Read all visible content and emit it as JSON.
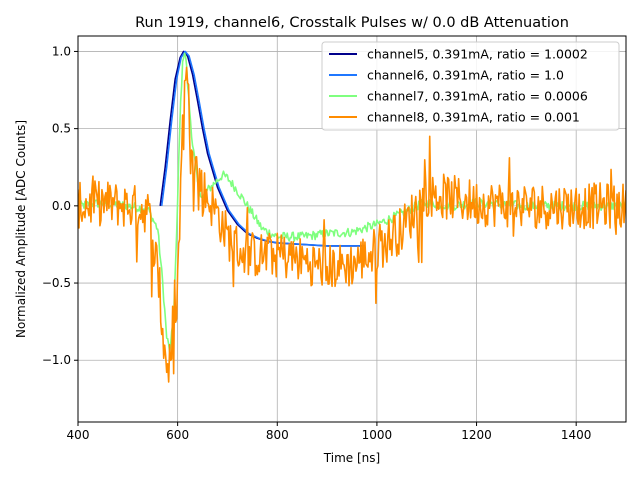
{
  "chart_data": {
    "type": "line",
    "title": "Run 1919, channel6, Crosstalk Pulses w/ 0.0 dB Attenuation",
    "xlabel": "Time [ns]",
    "ylabel": "Normalized Amplitude [ADC Counts]",
    "xlim": [
      400,
      1500
    ],
    "ylim": [
      -1.4,
      1.1
    ],
    "xticks": [
      400,
      600,
      800,
      1000,
      1200,
      1400
    ],
    "yticks": [
      -1.0,
      -0.5,
      0.0,
      0.5,
      1.0
    ],
    "xtick_labels": [
      "400",
      "600",
      "800",
      "1000",
      "1200",
      "1400"
    ],
    "ytick_labels": [
      "−1.0",
      "−0.5",
      "0.0",
      "0.5",
      "1.0"
    ],
    "grid": true,
    "legend_position": "upper-right",
    "series": [
      {
        "name": "channel5, 0.391mA, ratio = 1.0002",
        "color": "#00008b",
        "x": [
          565,
          575,
          585,
          595,
          605,
          612,
          620,
          630,
          640,
          650,
          660,
          680,
          700,
          720,
          740,
          760,
          780,
          800,
          850,
          900,
          950,
          975
        ],
        "y": [
          0.0,
          0.25,
          0.55,
          0.82,
          0.96,
          1.0,
          0.97,
          0.85,
          0.68,
          0.5,
          0.34,
          0.12,
          -0.03,
          -0.12,
          -0.18,
          -0.21,
          -0.23,
          -0.24,
          -0.25,
          -0.26,
          -0.26,
          -0.26
        ]
      },
      {
        "name": "channel6, 0.391mA, ratio = 1.0",
        "color": "#1f77ff",
        "x": [
          568,
          578,
          588,
          598,
          607,
          615,
          623,
          633,
          643,
          653,
          663,
          683,
          703,
          723,
          743,
          763,
          783,
          803,
          853,
          903,
          953,
          975
        ],
        "y": [
          0.0,
          0.25,
          0.55,
          0.82,
          0.96,
          1.0,
          0.97,
          0.85,
          0.68,
          0.5,
          0.34,
          0.12,
          -0.03,
          -0.12,
          -0.18,
          -0.21,
          -0.23,
          -0.24,
          -0.25,
          -0.26,
          -0.26,
          -0.26
        ]
      },
      {
        "name": "channel7, 0.391mA, ratio = 0.0006",
        "color": "#7fff7f",
        "x": [
          400,
          450,
          500,
          540,
          560,
          570,
          578,
          585,
          592,
          598,
          604,
          610,
          616,
          622,
          630,
          640,
          650,
          660,
          675,
          690,
          700,
          715,
          730,
          750,
          770,
          800,
          850,
          900,
          950,
          1000,
          1050,
          1080,
          1100,
          1150,
          1200,
          1300,
          1400,
          1500
        ],
        "y": [
          0.0,
          0.02,
          0.0,
          -0.02,
          -0.15,
          -0.5,
          -0.85,
          -0.95,
          -0.7,
          -0.2,
          0.5,
          0.95,
          0.98,
          0.7,
          0.4,
          0.15,
          0.05,
          0.1,
          0.15,
          0.2,
          0.18,
          0.12,
          0.05,
          -0.05,
          -0.15,
          -0.2,
          -0.2,
          -0.18,
          -0.17,
          -0.12,
          -0.05,
          0.0,
          0.02,
          0.0,
          0.02,
          0.0,
          0.0,
          0.0
        ]
      },
      {
        "name": "channel8, 0.391mA, ratio = 0.001",
        "color": "#ff8c00",
        "x": [
          400,
          450,
          500,
          540,
          560,
          570,
          580,
          590,
          600,
          608,
          615,
          625,
          640,
          660,
          680,
          700,
          730,
          760,
          800,
          850,
          900,
          950,
          1000,
          1050,
          1100,
          1150,
          1200,
          1300,
          1400,
          1500
        ],
        "y": [
          0.0,
          0.02,
          0.0,
          -0.03,
          -0.4,
          -0.85,
          -1.05,
          -1.0,
          -0.5,
          0.3,
          0.95,
          0.55,
          0.2,
          0.05,
          -0.05,
          -0.2,
          -0.3,
          -0.32,
          -0.32,
          -0.35,
          -0.4,
          -0.38,
          -0.28,
          -0.15,
          0.08,
          0.05,
          0.02,
          0.0,
          0.0,
          0.0
        ],
        "noise_amplitude": 0.15
      }
    ]
  }
}
